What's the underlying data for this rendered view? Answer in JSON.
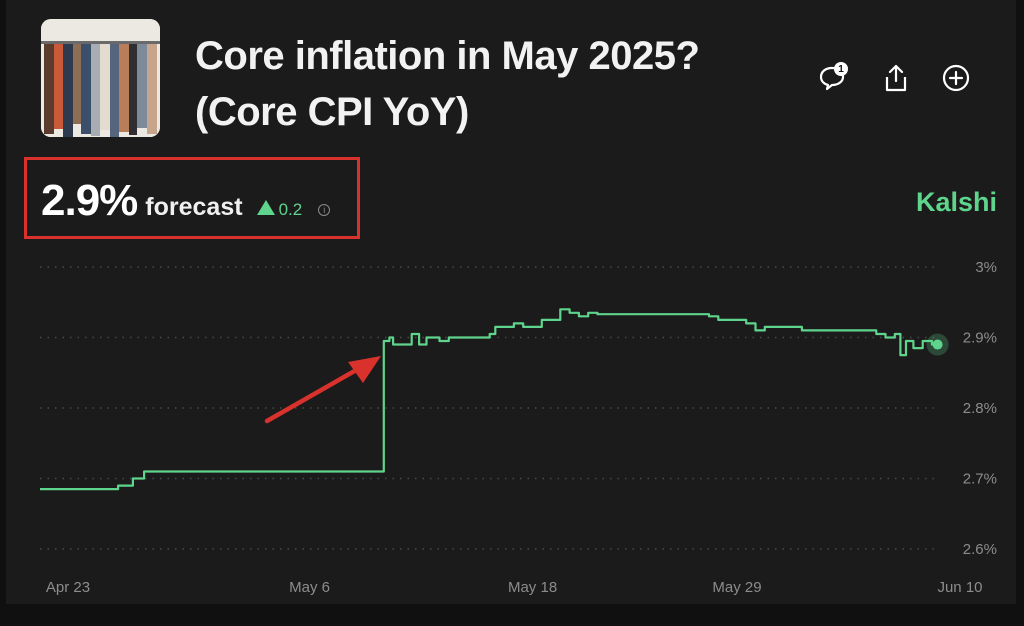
{
  "header": {
    "title_line1": "Core inflation in May 2025?",
    "title_line2": "(Core CPI YoY)",
    "comments_badge": "1",
    "icons": [
      "comment-icon",
      "share-icon",
      "add-circle-icon"
    ]
  },
  "forecast": {
    "value": "2.9%",
    "label": "forecast",
    "change": "0.2",
    "info_icon": "info-icon"
  },
  "brand": "Kalshi",
  "colors": {
    "accent": "#5fd48c",
    "highlight": "#d9322d",
    "background": "#1b1b1b"
  },
  "chart_data": {
    "type": "line",
    "y_tick_labels": [
      "3%",
      "2.9%",
      "2.8%",
      "2.7%",
      "2.6%"
    ],
    "y_ticks": [
      3.0,
      2.9,
      2.8,
      2.7,
      2.6
    ],
    "ylim": [
      2.6,
      3.0
    ],
    "x_tick_labels": [
      "Apr 23",
      "May 6",
      "May 18",
      "May 29",
      "Jun 10"
    ],
    "x_ticks": [
      0,
      13,
      25,
      36,
      48
    ],
    "xlim": [
      0,
      48
    ],
    "grid": true,
    "series": [
      {
        "x": [
          0,
          4.1,
          4.2,
          4.9,
          5.0,
          5.5,
          5.6,
          18.3,
          18.5,
          18.8,
          19.0,
          19.8,
          20.0,
          20.4,
          20.6,
          20.8,
          21.5,
          22.0,
          23.0,
          24.2,
          24.5,
          25.0,
          25.5,
          26.0,
          27.0,
          27.5,
          28.0,
          28.5,
          29.0,
          29.5,
          30.0,
          31.0,
          33.0,
          35.0,
          36.0,
          36.5,
          37.0,
          38.0,
          38.5,
          39.0,
          40.0,
          41.0,
          42.0,
          43.0,
          44.0,
          45.0,
          45.5,
          46.0,
          46.3,
          46.6,
          47.0,
          47.5,
          48.0,
          48.3
        ],
        "y": [
          2.685,
          2.685,
          2.69,
          2.69,
          2.7,
          2.7,
          2.71,
          2.71,
          2.895,
          2.9,
          2.89,
          2.89,
          2.905,
          2.89,
          2.89,
          2.9,
          2.895,
          2.9,
          2.9,
          2.905,
          2.915,
          2.915,
          2.92,
          2.915,
          2.925,
          2.925,
          2.94,
          2.935,
          2.93,
          2.935,
          2.933,
          2.933,
          2.933,
          2.933,
          2.93,
          2.925,
          2.925,
          2.92,
          2.91,
          2.915,
          2.915,
          2.91,
          2.91,
          2.91,
          2.91,
          2.905,
          2.9,
          2.905,
          2.875,
          2.895,
          2.885,
          2.895,
          2.89,
          2.89
        ]
      }
    ]
  }
}
